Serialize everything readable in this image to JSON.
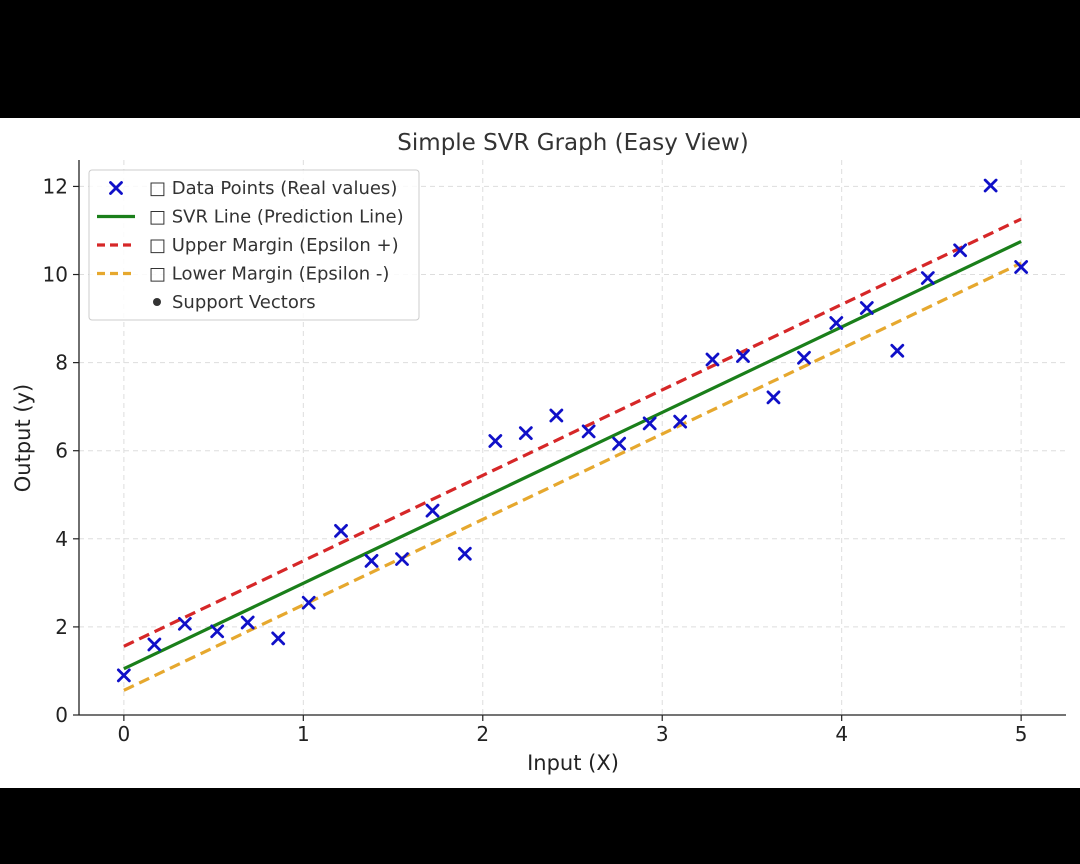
{
  "chart_data": {
    "type": "scatter",
    "title": "Simple SVR Graph (Easy View)",
    "xlabel": "Input (X)",
    "ylabel": "Output (y)",
    "xlim": [
      -0.25,
      5.25
    ],
    "ylim": [
      0,
      12.6
    ],
    "x_ticks": [
      0,
      1,
      2,
      3,
      4,
      5
    ],
    "y_ticks": [
      0,
      2,
      4,
      6,
      8,
      10,
      12
    ],
    "grid": true,
    "legend_position": "top-left",
    "series": [
      {
        "name": "□ Data Points (Real values)",
        "kind": "scatter",
        "marker": "x",
        "color": "#1010c8",
        "x": [
          0,
          0.17,
          0.34,
          0.52,
          0.69,
          0.86,
          1.03,
          1.21,
          1.38,
          1.55,
          1.72,
          1.9,
          2.07,
          2.24,
          2.41,
          2.59,
          2.76,
          2.93,
          3.1,
          3.28,
          3.45,
          3.62,
          3.79,
          3.97,
          4.14,
          4.31,
          4.48,
          4.66,
          4.83,
          5.0
        ],
        "y": [
          0.9,
          1.6,
          2.07,
          1.9,
          2.1,
          1.74,
          2.55,
          4.18,
          3.5,
          3.54,
          4.64,
          3.66,
          6.22,
          6.4,
          6.8,
          6.44,
          6.16,
          6.62,
          6.66,
          8.07,
          8.15,
          7.21,
          8.11,
          8.9,
          9.24,
          8.27,
          9.92,
          10.55,
          12.02,
          10.17
        ]
      },
      {
        "name": "□ SVR Line (Prediction Line)",
        "kind": "line",
        "color": "#1a7f1a",
        "dash": "solid",
        "x": [
          0,
          5
        ],
        "y": [
          1.05,
          10.75
        ]
      },
      {
        "name": "□ Upper Margin (Epsilon +)",
        "kind": "line",
        "color": "#d62728",
        "dash": "dashed",
        "x": [
          0,
          5
        ],
        "y": [
          1.56,
          11.26
        ]
      },
      {
        "name": "□ Lower Margin (Epsilon -)",
        "kind": "line",
        "color": "#e6a82e",
        "dash": "dashed",
        "x": [
          0,
          5
        ],
        "y": [
          0.56,
          10.26
        ]
      },
      {
        "name": "Support Vectors",
        "kind": "scatter",
        "marker": "dot",
        "color": "#333333",
        "x": [],
        "y": []
      }
    ]
  }
}
